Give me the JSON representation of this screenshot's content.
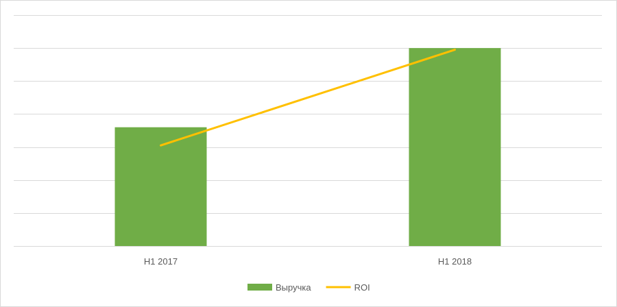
{
  "chart_data": {
    "type": "bar",
    "categories": [
      "H1 2017",
      "H1 2018"
    ],
    "series": [
      {
        "name": "Выручка",
        "kind": "bar",
        "color": "#70ad47",
        "values": [
          3.6,
          6.0
        ]
      },
      {
        "name": "ROI",
        "kind": "line",
        "color": "#ffc000",
        "values": [
          3.05,
          5.95
        ]
      }
    ],
    "ylim": [
      0,
      7
    ],
    "y_tick_step": 1,
    "y_tick_labels_shown": false,
    "grid": true,
    "legend_position": "bottom"
  }
}
